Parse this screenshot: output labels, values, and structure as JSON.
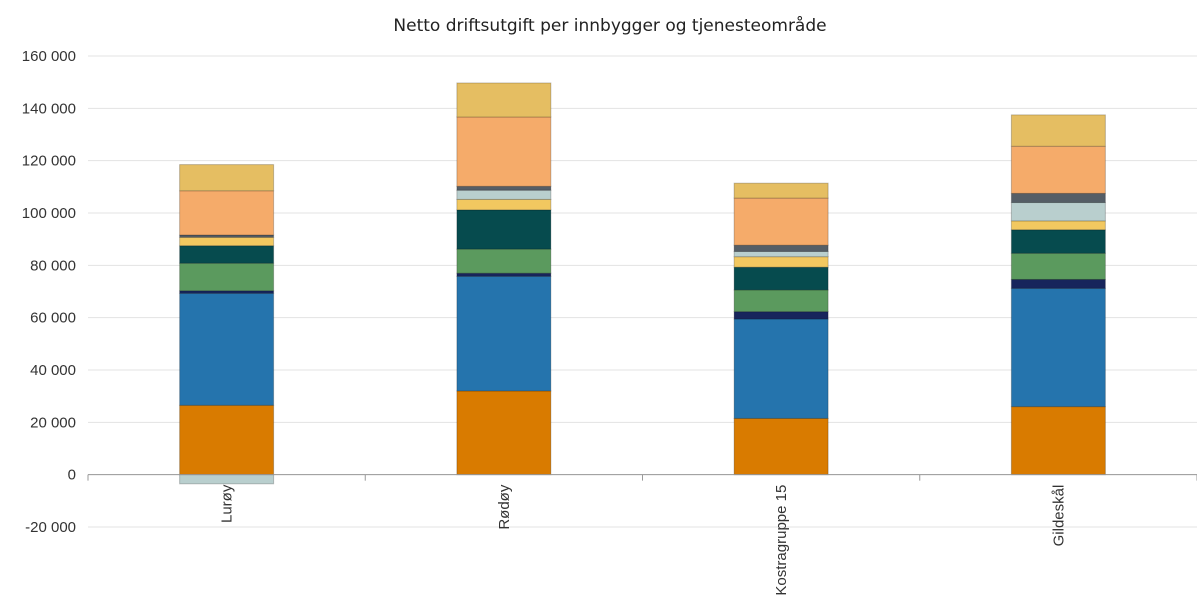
{
  "chart_data": {
    "type": "bar",
    "stacked": true,
    "title": "Netto driftsutgift per innbygger og tjenesteområde",
    "xlabel": "",
    "ylabel": "",
    "categories": [
      "Lurøy",
      "Rødøy",
      "Kostragruppe 15",
      "Gildeskål"
    ],
    "ylim": [
      -20000,
      160000
    ],
    "yticks": [
      -20000,
      0,
      20000,
      40000,
      60000,
      80000,
      100000,
      120000,
      140000,
      160000
    ],
    "ytick_labels": [
      "-20 000",
      "0",
      "20 000",
      "40 000",
      "60 000",
      "80 000",
      "100 000",
      "120 000",
      "140 000",
      "160 000"
    ],
    "grid": true,
    "legend": "none",
    "series_colors": [
      "#d97b00",
      "#2574ad",
      "#17255c",
      "#5b9a5e",
      "#064b4e",
      "#f2c860",
      "#b9cfce",
      "#555e66",
      "#f5ab6a",
      "#e5be62"
    ],
    "series": [
      {
        "values": [
          26500,
          32000,
          21500,
          26000
        ]
      },
      {
        "values": [
          42800,
          43800,
          38000,
          45200
        ]
      },
      {
        "values": [
          1000,
          1200,
          2800,
          3400
        ]
      },
      {
        "values": [
          10500,
          9200,
          8300,
          10000
        ]
      },
      {
        "values": [
          6700,
          15000,
          8700,
          9000
        ]
      },
      {
        "values": [
          3200,
          4000,
          4000,
          3400
        ]
      },
      {
        "values": [
          -3500,
          3500,
          2000,
          7000
        ]
      },
      {
        "values": [
          900,
          1500,
          2400,
          3500
        ]
      },
      {
        "values": [
          16900,
          26500,
          18000,
          18000
        ]
      },
      {
        "values": [
          10000,
          13000,
          5700,
          12000
        ]
      }
    ]
  }
}
